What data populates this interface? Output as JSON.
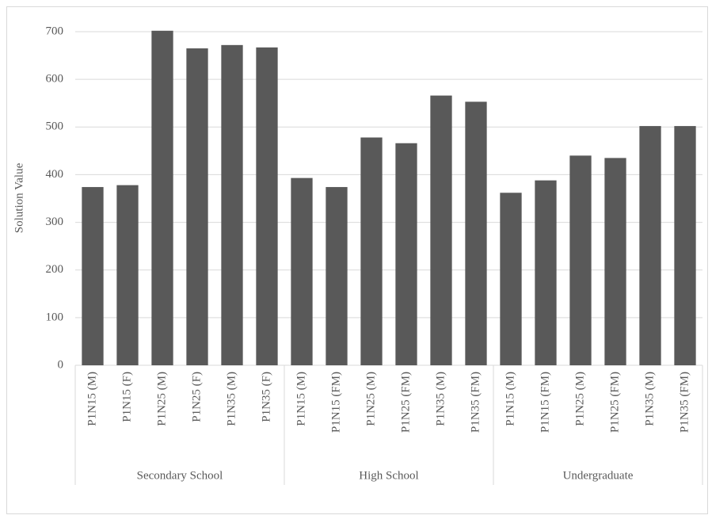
{
  "chart_data": {
    "type": "bar",
    "ylabel": "Solution Value",
    "color": "#595959",
    "ylim": [
      0,
      700
    ],
    "yticks": [
      0,
      100,
      200,
      300,
      400,
      500,
      600,
      700
    ],
    "grid": true,
    "groups": [
      {
        "name": "Secondary School",
        "categories": [
          "P1N15 (M)",
          "P1N15 (F)",
          "P1N25 (M)",
          "P1N25 (F)",
          "P1N35 (M)",
          "P1N35 (F)"
        ],
        "values": [
          374,
          378,
          702,
          665,
          672,
          667
        ]
      },
      {
        "name": "High School",
        "categories": [
          "P1N15 (M)",
          "P1N15 (FM)",
          "P1N25 (M)",
          "P1N25 (FM)",
          "P1N35 (M)",
          "P1N35 (FM)"
        ],
        "values": [
          393,
          374,
          478,
          466,
          566,
          553
        ]
      },
      {
        "name": "Undergraduate",
        "categories": [
          "P1N15 (M)",
          "P1N15 (FM)",
          "P1N25 (M)",
          "P1N25 (FM)",
          "P1N35 (M)",
          "P1N35 (FM)"
        ],
        "values": [
          362,
          388,
          440,
          435,
          502,
          502
        ]
      }
    ]
  }
}
